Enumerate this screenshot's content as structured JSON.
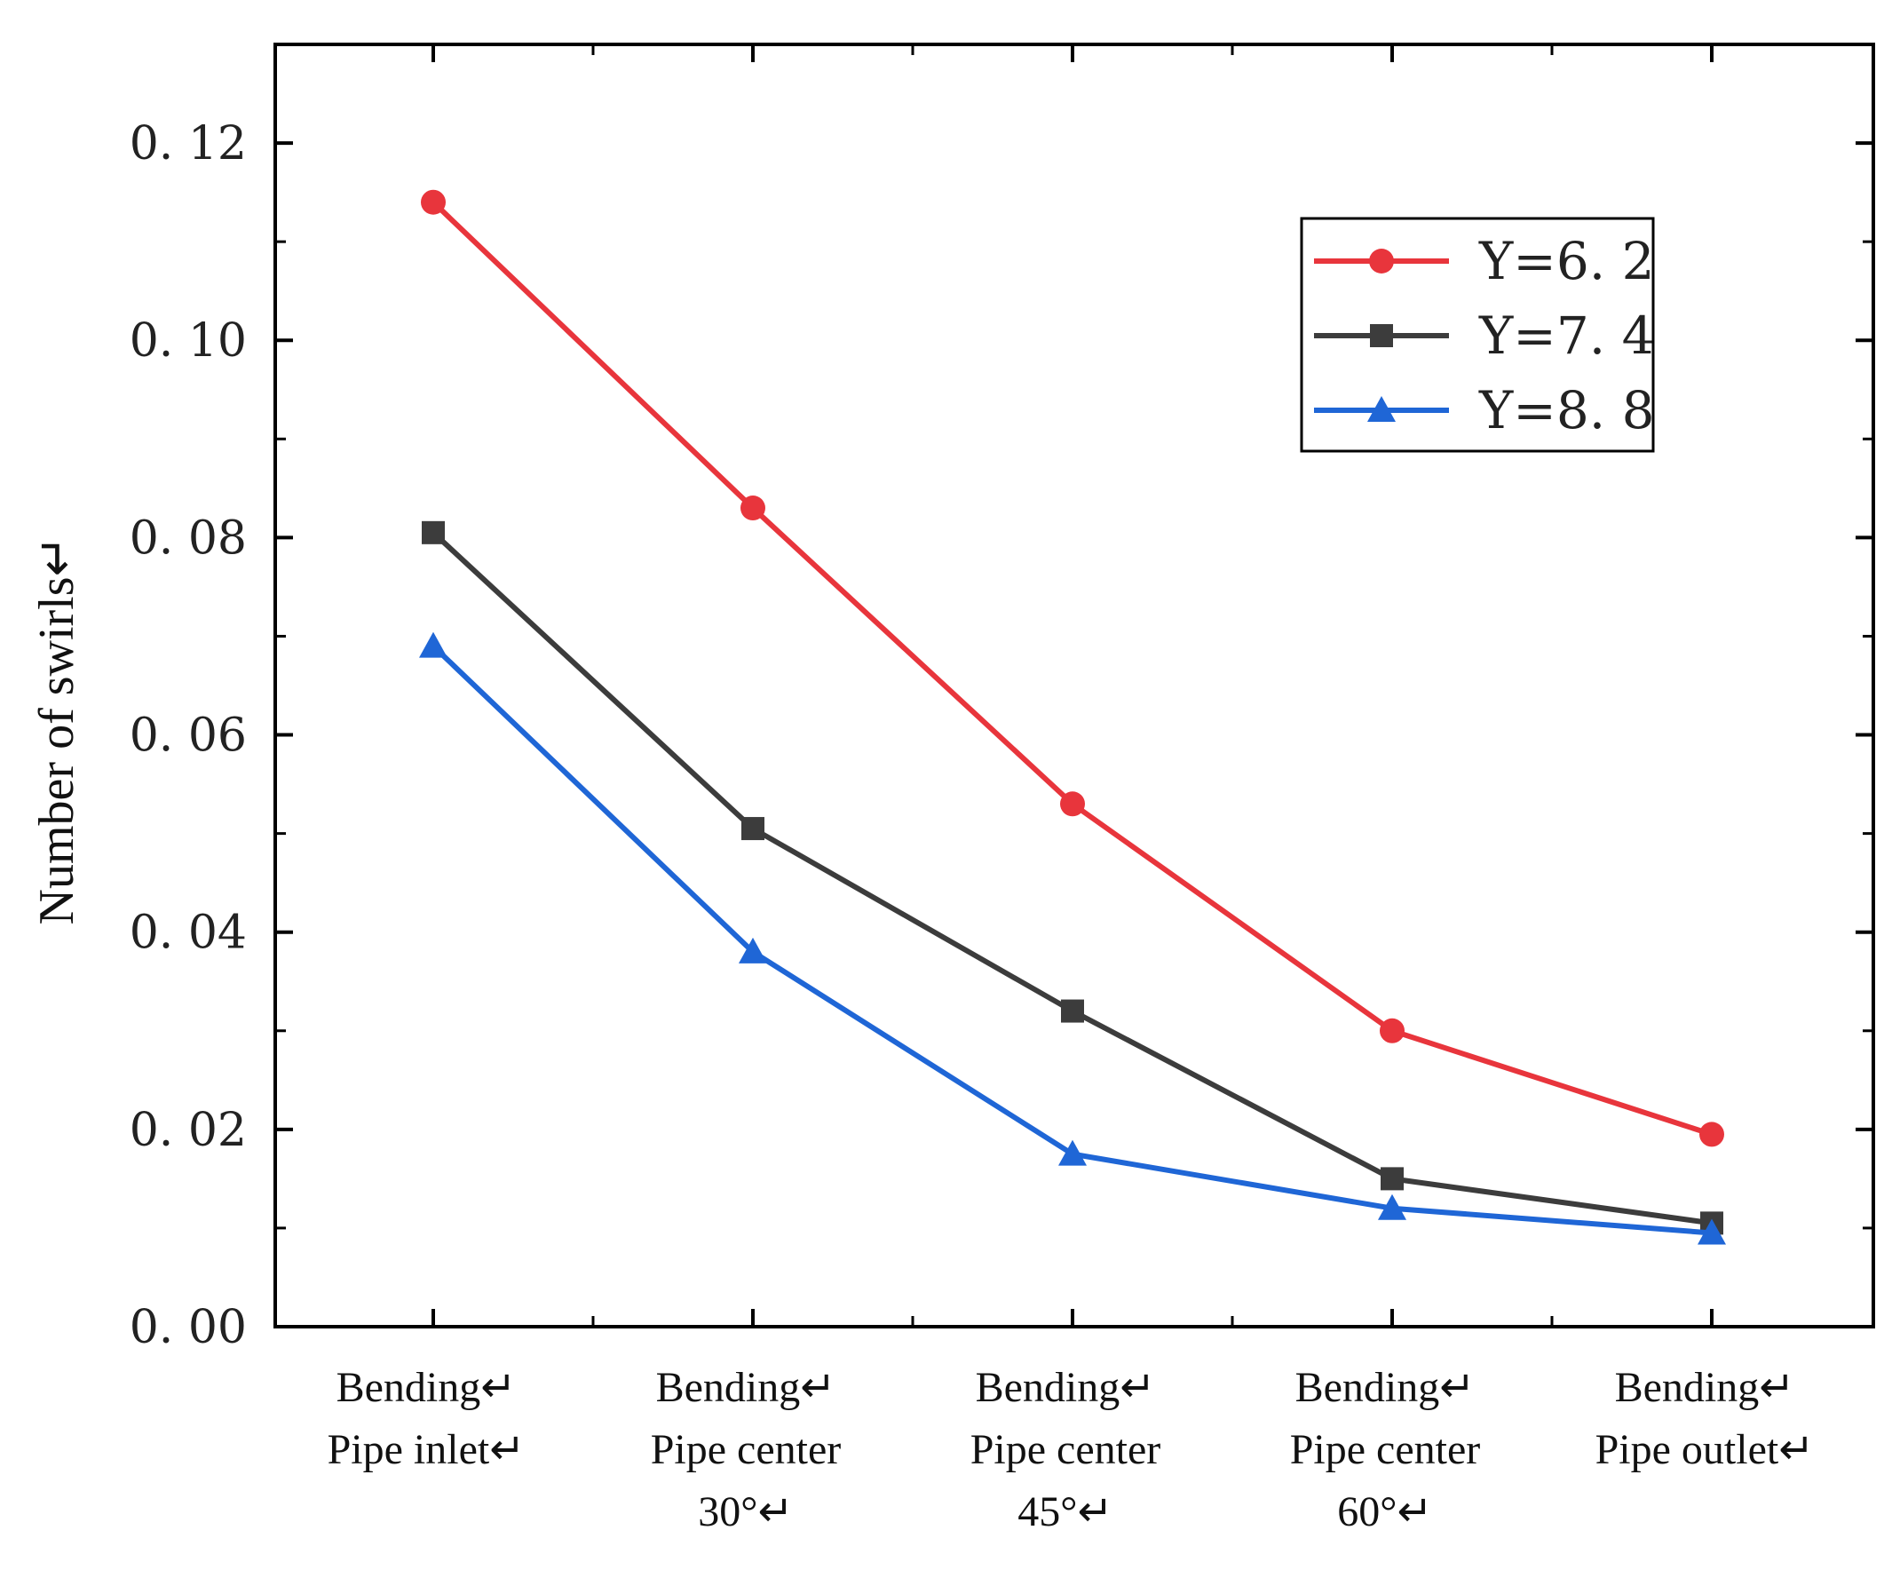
{
  "chart_data": {
    "type": "line",
    "title": "",
    "xlabel": "",
    "ylabel": "Number of swirls↵",
    "ylim": [
      0,
      0.13
    ],
    "yticks": [
      "0. 00",
      "0. 02",
      "0. 04",
      "0. 06",
      "0. 08",
      "0. 10",
      "0. 12"
    ],
    "ytick_values": [
      0,
      0.02,
      0.04,
      0.06,
      0.08,
      0.1,
      0.12
    ],
    "categories": [
      [
        "Bending↵",
        "Pipe inlet↵"
      ],
      [
        "Bending↵",
        "Pipe center",
        "30°↵"
      ],
      [
        "Bending↵",
        "Pipe center",
        "45°↵"
      ],
      [
        "Bending↵",
        "Pipe center",
        "60°↵"
      ],
      [
        "Bending↵",
        "Pipe outlet↵"
      ]
    ],
    "legend_position": "top-right",
    "series": [
      {
        "name": "Y=6. 2",
        "color": "#e8353c",
        "marker": "circle",
        "values": [
          0.114,
          0.083,
          0.053,
          0.03,
          0.0195
        ]
      },
      {
        "name": "Y=7. 4",
        "color": "#3c3c3c",
        "marker": "square",
        "values": [
          0.0805,
          0.0505,
          0.032,
          0.015,
          0.0105
        ]
      },
      {
        "name": "Y=8. 8",
        "color": "#1f66d6",
        "marker": "triangle",
        "values": [
          0.069,
          0.038,
          0.0175,
          0.012,
          0.0095
        ]
      }
    ]
  }
}
